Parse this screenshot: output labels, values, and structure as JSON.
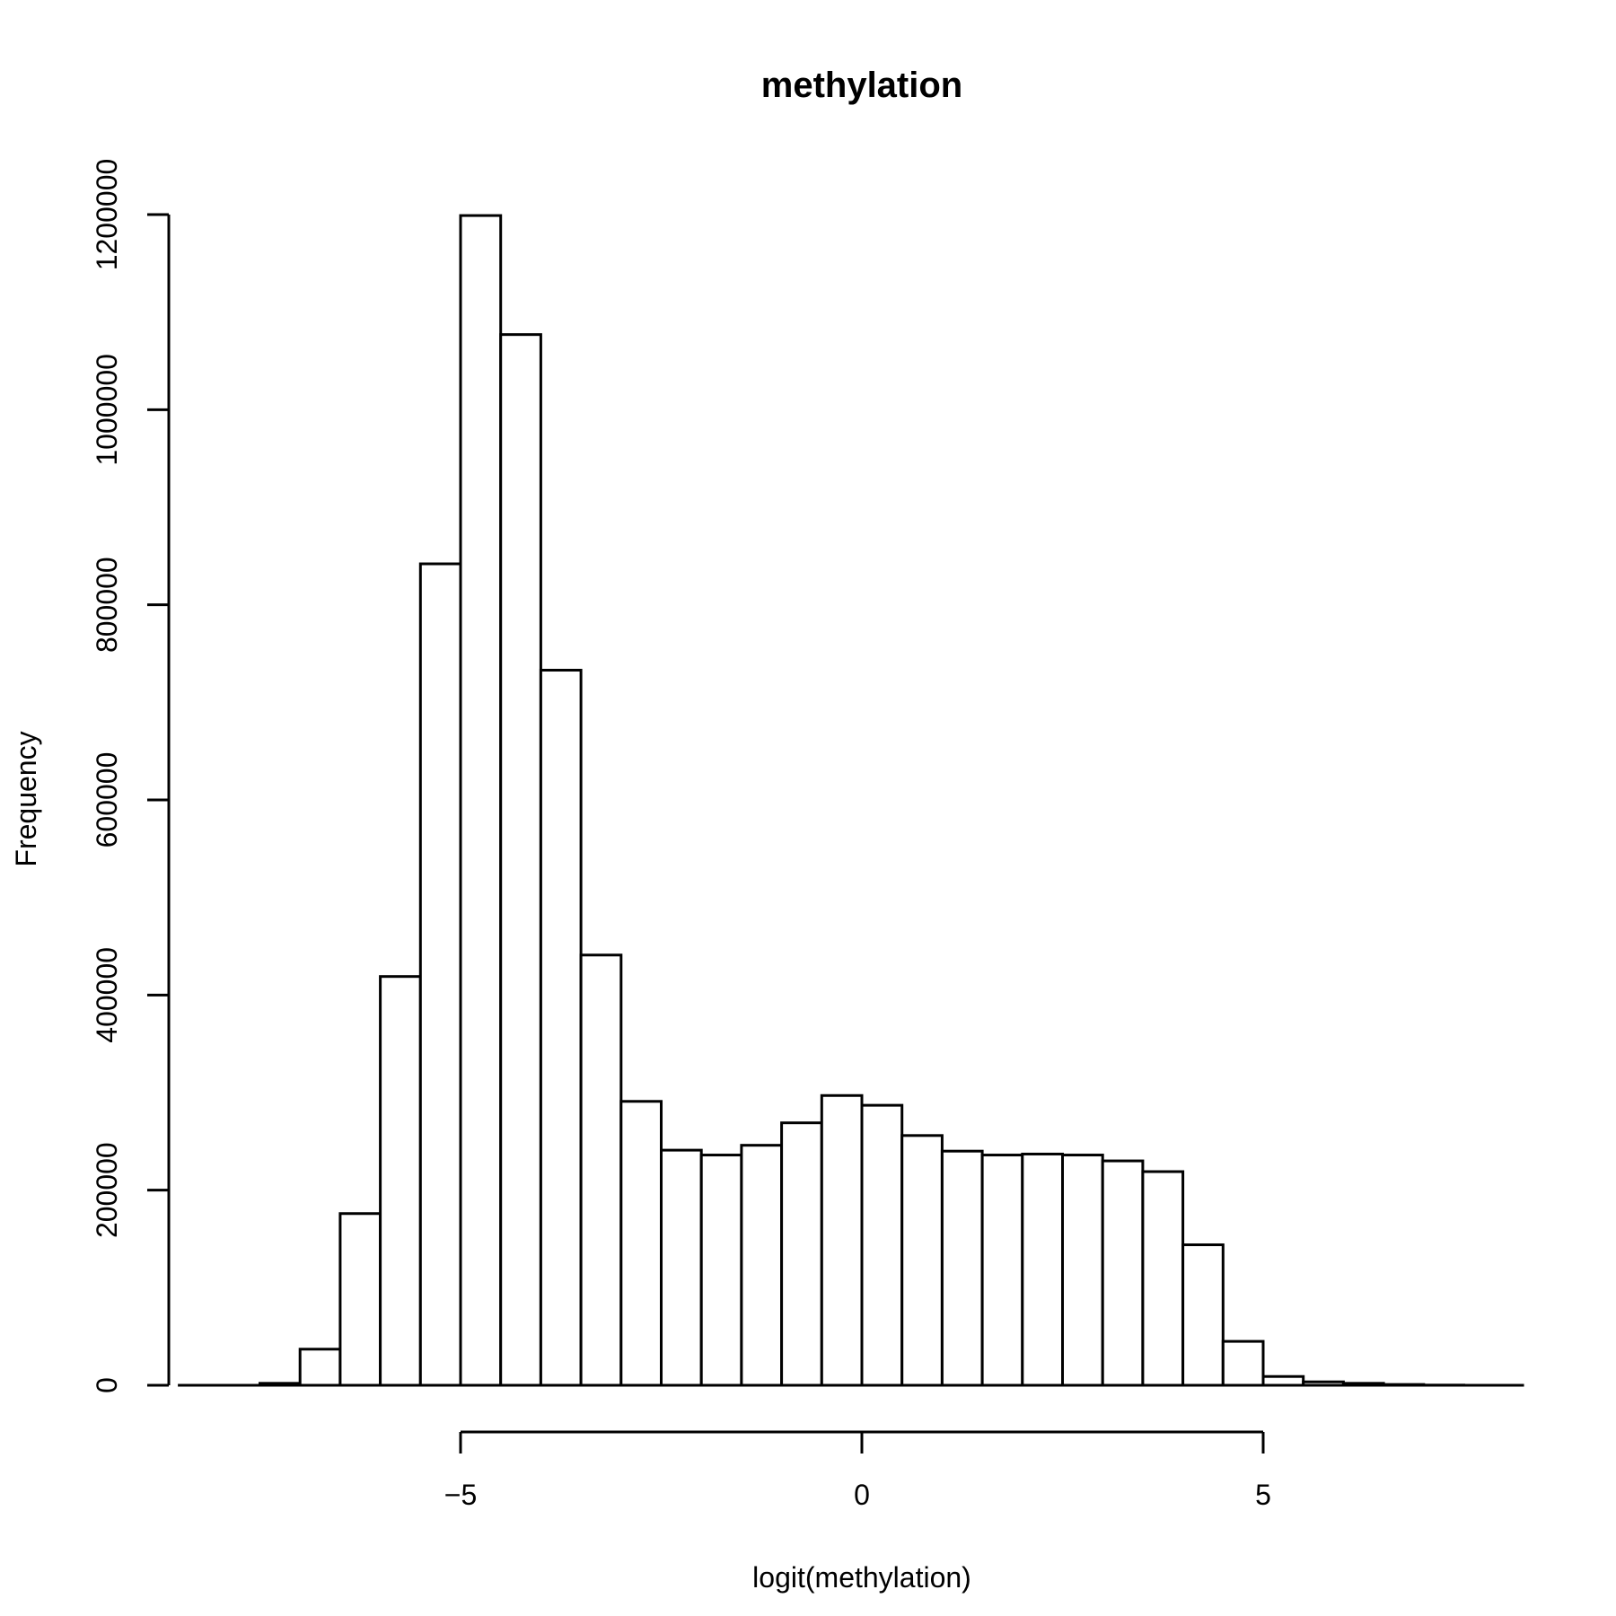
{
  "chart_data": {
    "type": "bar",
    "title": "methylation",
    "xlabel": "logit(methylation)",
    "ylabel": "Frequency",
    "xlim": [
      -8.5,
      8.25
    ],
    "ylim": [
      0,
      1200000
    ],
    "x_ticks": [
      {
        "value": -5,
        "label": "−5"
      },
      {
        "value": 0,
        "label": "0"
      },
      {
        "value": 5,
        "label": "5"
      }
    ],
    "y_ticks": [
      {
        "value": 0,
        "label": "0"
      },
      {
        "value": 200000,
        "label": "200000"
      },
      {
        "value": 400000,
        "label": "400000"
      },
      {
        "value": 600000,
        "label": "600000"
      },
      {
        "value": 800000,
        "label": "800000"
      },
      {
        "value": 1000000,
        "label": "1000000"
      },
      {
        "value": 1200000,
        "label": "1200000"
      }
    ],
    "grid": false,
    "bin_width": 0.5,
    "bins": [
      {
        "start": -7.5,
        "count": 2000
      },
      {
        "start": -7.0,
        "count": 37000
      },
      {
        "start": -6.5,
        "count": 176000
      },
      {
        "start": -6.0,
        "count": 419000
      },
      {
        "start": -5.5,
        "count": 842000
      },
      {
        "start": -5.0,
        "count": 1199000
      },
      {
        "start": -4.5,
        "count": 1077000
      },
      {
        "start": -4.0,
        "count": 733000
      },
      {
        "start": -3.5,
        "count": 441000
      },
      {
        "start": -3.0,
        "count": 291000
      },
      {
        "start": -2.5,
        "count": 241000
      },
      {
        "start": -2.0,
        "count": 236000
      },
      {
        "start": -1.5,
        "count": 246000
      },
      {
        "start": -1.0,
        "count": 269000
      },
      {
        "start": -0.5,
        "count": 297000
      },
      {
        "start": 0.0,
        "count": 287000
      },
      {
        "start": 0.5,
        "count": 256000
      },
      {
        "start": 1.0,
        "count": 240000
      },
      {
        "start": 1.5,
        "count": 236000
      },
      {
        "start": 2.0,
        "count": 237000
      },
      {
        "start": 2.5,
        "count": 236000
      },
      {
        "start": 3.0,
        "count": 230000
      },
      {
        "start": 3.5,
        "count": 219000
      },
      {
        "start": 4.0,
        "count": 144000
      },
      {
        "start": 4.5,
        "count": 45000
      },
      {
        "start": 5.0,
        "count": 9000
      },
      {
        "start": 5.5,
        "count": 3500
      },
      {
        "start": 6.0,
        "count": 2000
      },
      {
        "start": 6.5,
        "count": 800
      },
      {
        "start": 7.0,
        "count": 200
      }
    ]
  }
}
